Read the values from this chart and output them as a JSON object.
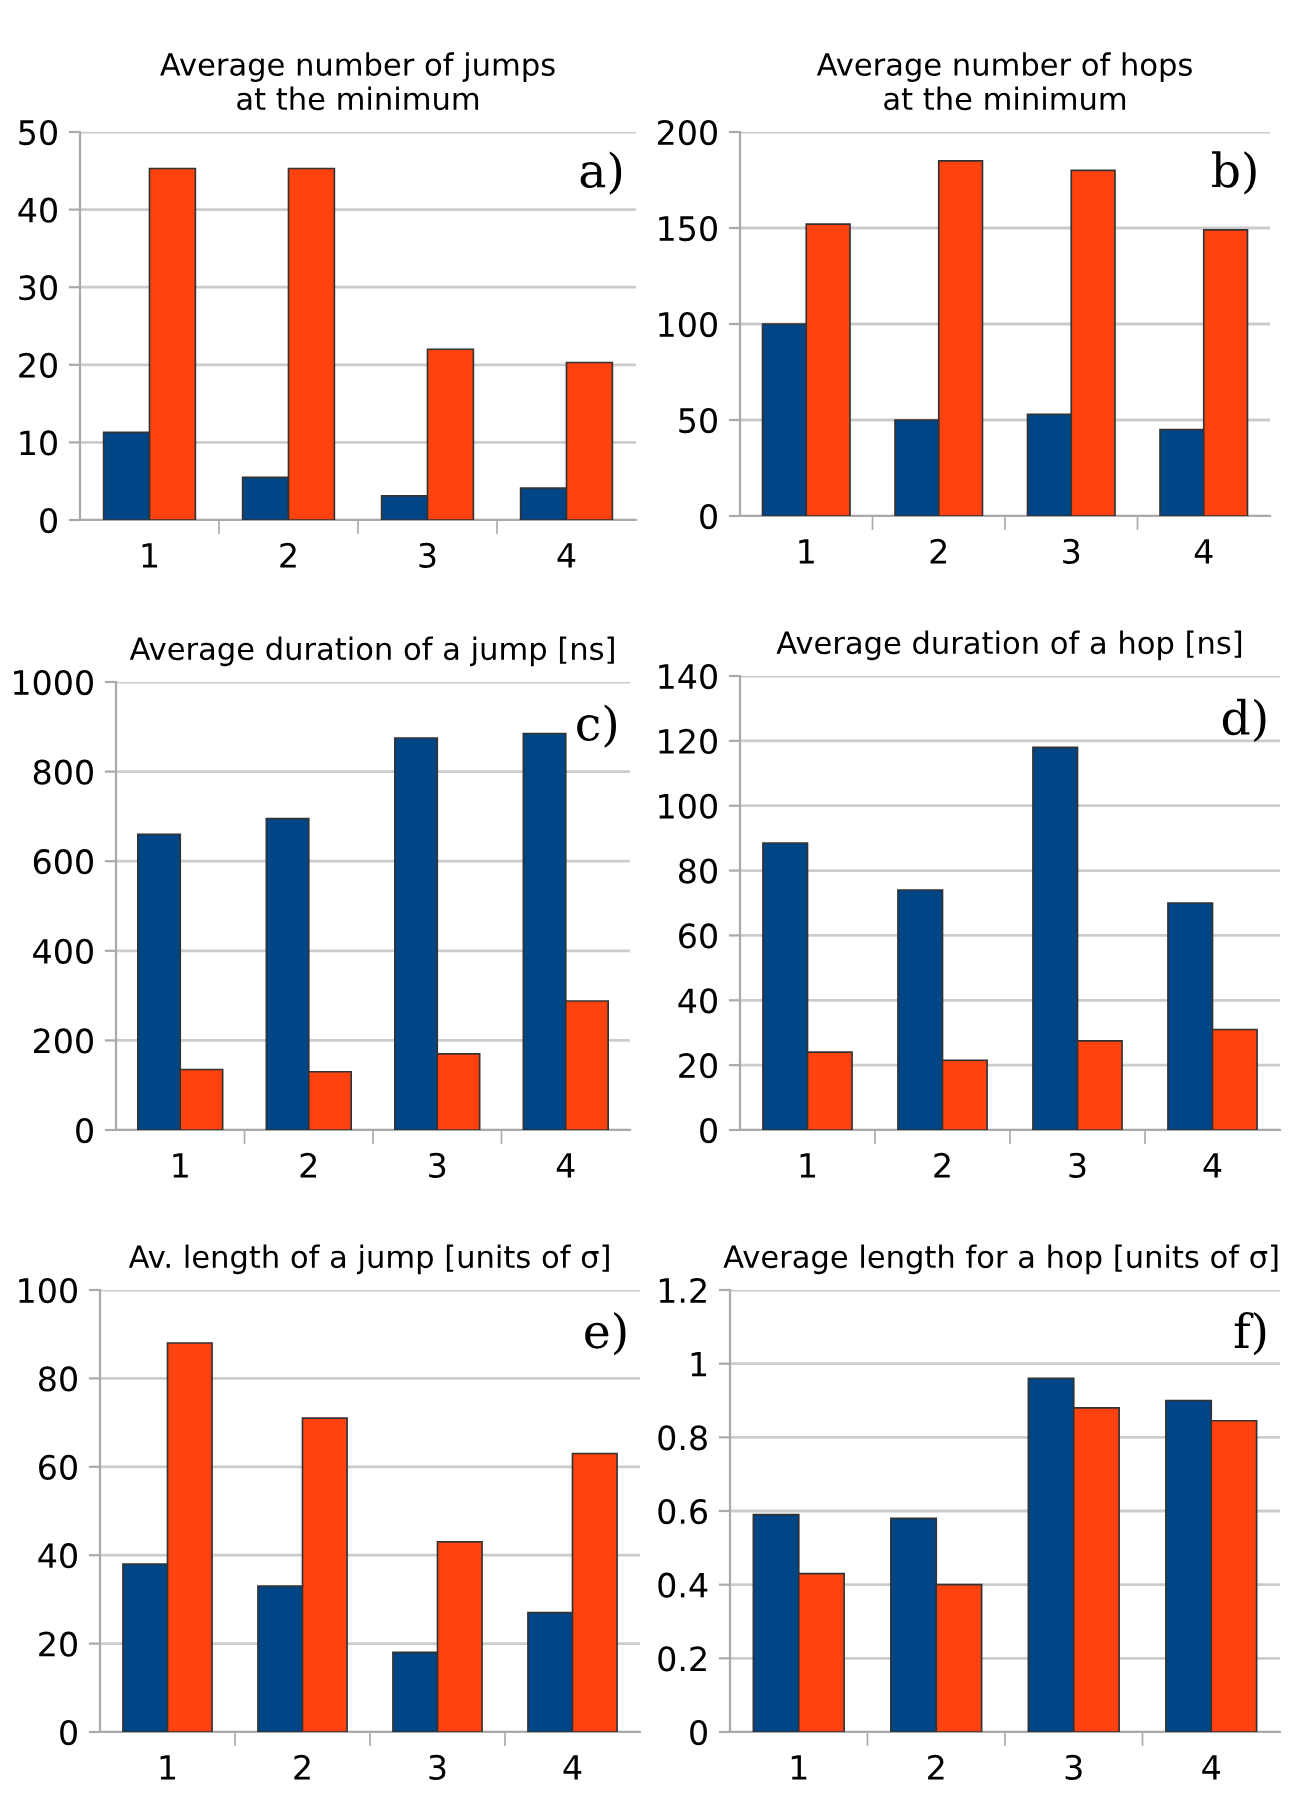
{
  "chart_data": [
    {
      "type": "bar",
      "title": "Average number of jumps\nat the minimum",
      "categories": [
        "1",
        "2",
        "3",
        "4"
      ],
      "series": [
        {
          "color": "#004586",
          "values": [
            11.3,
            5.5,
            3.1,
            4.1
          ]
        },
        {
          "color": "#ff420e",
          "values": [
            45.3,
            45.3,
            22,
            20.3
          ]
        }
      ],
      "ylim": [
        0,
        50
      ],
      "yticks": [
        0,
        10,
        20,
        30,
        40,
        50
      ],
      "grid": "y",
      "annotations": [
        "a)"
      ]
    },
    {
      "type": "bar",
      "title": "Average number of hops\nat the minimum",
      "categories": [
        "1",
        "2",
        "3",
        "4"
      ],
      "series": [
        {
          "color": "#004586",
          "values": [
            100,
            50,
            53,
            45
          ]
        },
        {
          "color": "#ff420e",
          "values": [
            152,
            185,
            180,
            149
          ]
        }
      ],
      "ylim": [
        0,
        200
      ],
      "yticks": [
        0,
        50,
        100,
        150,
        200
      ],
      "grid": "y",
      "annotations": [
        "b)"
      ]
    },
    {
      "type": "bar",
      "title": "Average duration of a jump [ns]",
      "categories": [
        "1",
        "2",
        "3",
        "4"
      ],
      "series": [
        {
          "color": "#004586",
          "values": [
            660,
            695,
            875,
            885
          ]
        },
        {
          "color": "#ff420e",
          "values": [
            135,
            130,
            170,
            288
          ]
        }
      ],
      "ylim": [
        0,
        1000
      ],
      "yticks": [
        0,
        200,
        400,
        600,
        800,
        1000
      ],
      "grid": "y",
      "annotations": [
        "c)"
      ]
    },
    {
      "type": "bar",
      "title": "Average duration of a hop [ns]",
      "categories": [
        "1",
        "2",
        "3",
        "4"
      ],
      "series": [
        {
          "color": "#004586",
          "values": [
            88.5,
            74,
            118,
            70
          ]
        },
        {
          "color": "#ff420e",
          "values": [
            24,
            21.5,
            27.5,
            31
          ]
        }
      ],
      "ylim": [
        0,
        140
      ],
      "yticks": [
        0,
        20,
        40,
        60,
        80,
        100,
        120,
        140
      ],
      "grid": "y",
      "annotations": [
        "d)"
      ]
    },
    {
      "type": "bar",
      "title": "Av. length of a jump [units of σ]",
      "categories": [
        "1",
        "2",
        "3",
        "4"
      ],
      "series": [
        {
          "color": "#004586",
          "values": [
            38,
            33,
            18,
            27
          ]
        },
        {
          "color": "#ff420e",
          "values": [
            88,
            71,
            43,
            63
          ]
        }
      ],
      "ylim": [
        0,
        100
      ],
      "yticks": [
        0,
        20,
        40,
        60,
        80,
        100
      ],
      "grid": "y",
      "annotations": [
        "e)"
      ]
    },
    {
      "type": "bar",
      "title": "Average length for a hop [units of σ]",
      "categories": [
        "1",
        "2",
        "3",
        "4"
      ],
      "series": [
        {
          "color": "#004586",
          "values": [
            0.59,
            0.58,
            0.96,
            0.9
          ]
        },
        {
          "color": "#ff420e",
          "values": [
            0.43,
            0.4,
            0.88,
            0.845
          ]
        }
      ],
      "ylim": [
        0,
        1.2
      ],
      "yticks": [
        0,
        {
          "value": 0.2,
          "label": "0.2"
        },
        {
          "value": 0.4,
          "label": "0.4"
        },
        {
          "value": 0.6,
          "label": "0.6"
        },
        {
          "value": 0.8,
          "label": "0.8"
        },
        1,
        {
          "value": 1.2,
          "label": "1.2"
        }
      ],
      "grid": "y",
      "annotations": [
        "f)"
      ]
    }
  ]
}
